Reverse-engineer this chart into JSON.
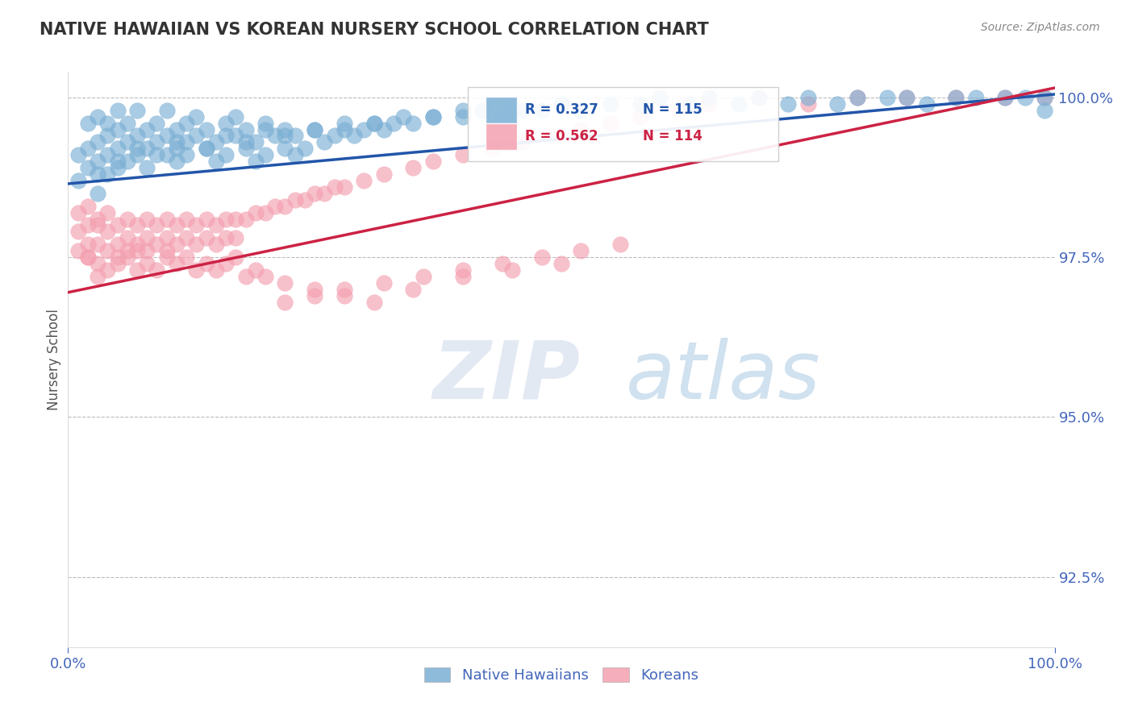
{
  "title": "NATIVE HAWAIIAN VS KOREAN NURSERY SCHOOL CORRELATION CHART",
  "source_text": "Source: ZipAtlas.com",
  "ylabel": "Nursery School",
  "xlim": [
    0.0,
    1.0
  ],
  "ylim": [
    0.914,
    1.004
  ],
  "yticks": [
    0.925,
    0.95,
    0.975,
    1.0
  ],
  "ytick_labels": [
    "92.5%",
    "95.0%",
    "97.5%",
    "100.0%"
  ],
  "xtick_labels": [
    "0.0%",
    "100.0%"
  ],
  "blue_color": "#7BAFD4",
  "pink_color": "#F4A0B0",
  "line_blue": "#2255AA",
  "line_pink": "#CC2244",
  "legend_R_blue": "R = 0.327",
  "legend_N_blue": "N = 115",
  "legend_R_pink": "R = 0.562",
  "legend_N_pink": "N = 114",
  "legend_label_blue": "Native Hawaiians",
  "legend_label_pink": "Koreans",
  "watermark_ZIP": "ZIP",
  "watermark_atlas": "atlas",
  "title_color": "#333333",
  "axis_label_color": "#555555",
  "tick_color": "#4466BB",
  "grid_color": "#BBBBBB",
  "blue_line": {
    "x0": 0.0,
    "x1": 1.0,
    "y0": 0.9865,
    "y1": 1.0005
  },
  "pink_line": {
    "x0": 0.0,
    "x1": 1.0,
    "y0": 0.9695,
    "y1": 1.0015
  },
  "blue_x": [
    0.01,
    0.01,
    0.02,
    0.02,
    0.02,
    0.03,
    0.03,
    0.03,
    0.03,
    0.04,
    0.04,
    0.04,
    0.04,
    0.05,
    0.05,
    0.05,
    0.05,
    0.06,
    0.06,
    0.06,
    0.07,
    0.07,
    0.07,
    0.08,
    0.08,
    0.08,
    0.09,
    0.09,
    0.1,
    0.1,
    0.1,
    0.11,
    0.11,
    0.11,
    0.12,
    0.12,
    0.12,
    0.13,
    0.13,
    0.14,
    0.14,
    0.15,
    0.15,
    0.16,
    0.16,
    0.17,
    0.17,
    0.18,
    0.18,
    0.19,
    0.19,
    0.2,
    0.2,
    0.21,
    0.22,
    0.22,
    0.23,
    0.23,
    0.24,
    0.25,
    0.26,
    0.27,
    0.28,
    0.29,
    0.3,
    0.31,
    0.32,
    0.33,
    0.35,
    0.37,
    0.4,
    0.42,
    0.44,
    0.46,
    0.48,
    0.5,
    0.52,
    0.55,
    0.58,
    0.6,
    0.63,
    0.65,
    0.68,
    0.7,
    0.73,
    0.75,
    0.78,
    0.8,
    0.83,
    0.85,
    0.87,
    0.9,
    0.92,
    0.95,
    0.97,
    0.99,
    0.99,
    0.03,
    0.05,
    0.07,
    0.09,
    0.11,
    0.14,
    0.16,
    0.18,
    0.2,
    0.22,
    0.25,
    0.28,
    0.31,
    0.34,
    0.37,
    0.4,
    0.45,
    0.5
  ],
  "blue_y": [
    0.991,
    0.987,
    0.992,
    0.989,
    0.996,
    0.99,
    0.993,
    0.997,
    0.985,
    0.994,
    0.991,
    0.996,
    0.988,
    0.992,
    0.995,
    0.989,
    0.998,
    0.993,
    0.99,
    0.996,
    0.991,
    0.994,
    0.998,
    0.992,
    0.995,
    0.989,
    0.993,
    0.996,
    0.991,
    0.994,
    0.998,
    0.992,
    0.995,
    0.99,
    0.993,
    0.996,
    0.991,
    0.994,
    0.997,
    0.992,
    0.995,
    0.99,
    0.993,
    0.996,
    0.991,
    0.994,
    0.997,
    0.992,
    0.995,
    0.99,
    0.993,
    0.996,
    0.991,
    0.994,
    0.992,
    0.995,
    0.991,
    0.994,
    0.992,
    0.995,
    0.993,
    0.994,
    0.995,
    0.994,
    0.995,
    0.996,
    0.995,
    0.996,
    0.996,
    0.997,
    0.997,
    0.998,
    0.997,
    0.998,
    0.998,
    0.999,
    0.998,
    0.999,
    0.999,
    1.0,
    0.999,
    1.0,
    0.999,
    1.0,
    0.999,
    1.0,
    0.999,
    1.0,
    1.0,
    1.0,
    0.999,
    1.0,
    1.0,
    1.0,
    1.0,
    1.0,
    0.998,
    0.988,
    0.99,
    0.992,
    0.991,
    0.993,
    0.992,
    0.994,
    0.993,
    0.995,
    0.994,
    0.995,
    0.996,
    0.996,
    0.997,
    0.997,
    0.998,
    0.998,
    0.999
  ],
  "pink_x": [
    0.01,
    0.01,
    0.01,
    0.02,
    0.02,
    0.02,
    0.02,
    0.03,
    0.03,
    0.03,
    0.03,
    0.04,
    0.04,
    0.04,
    0.05,
    0.05,
    0.05,
    0.06,
    0.06,
    0.06,
    0.07,
    0.07,
    0.07,
    0.08,
    0.08,
    0.08,
    0.09,
    0.09,
    0.1,
    0.1,
    0.1,
    0.11,
    0.11,
    0.12,
    0.12,
    0.13,
    0.13,
    0.14,
    0.14,
    0.15,
    0.15,
    0.16,
    0.16,
    0.17,
    0.17,
    0.18,
    0.19,
    0.2,
    0.21,
    0.22,
    0.23,
    0.24,
    0.25,
    0.26,
    0.27,
    0.28,
    0.3,
    0.32,
    0.35,
    0.37,
    0.4,
    0.43,
    0.46,
    0.49,
    0.52,
    0.55,
    0.58,
    0.62,
    0.65,
    0.7,
    0.75,
    0.8,
    0.85,
    0.9,
    0.95,
    0.99,
    0.02,
    0.03,
    0.04,
    0.05,
    0.06,
    0.07,
    0.08,
    0.09,
    0.1,
    0.11,
    0.12,
    0.13,
    0.14,
    0.15,
    0.16,
    0.17,
    0.18,
    0.19,
    0.2,
    0.22,
    0.25,
    0.28,
    0.31,
    0.35,
    0.4,
    0.45,
    0.5,
    0.22,
    0.25,
    0.28,
    0.32,
    0.36,
    0.4,
    0.44,
    0.48,
    0.52,
    0.56
  ],
  "pink_y": [
    0.979,
    0.982,
    0.976,
    0.98,
    0.977,
    0.983,
    0.975,
    0.98,
    0.977,
    0.974,
    0.981,
    0.979,
    0.976,
    0.982,
    0.98,
    0.977,
    0.975,
    0.981,
    0.978,
    0.976,
    0.98,
    0.977,
    0.976,
    0.981,
    0.978,
    0.976,
    0.98,
    0.977,
    0.981,
    0.978,
    0.976,
    0.98,
    0.977,
    0.981,
    0.978,
    0.98,
    0.977,
    0.981,
    0.978,
    0.98,
    0.977,
    0.981,
    0.978,
    0.981,
    0.978,
    0.981,
    0.982,
    0.982,
    0.983,
    0.983,
    0.984,
    0.984,
    0.985,
    0.985,
    0.986,
    0.986,
    0.987,
    0.988,
    0.989,
    0.99,
    0.991,
    0.992,
    0.993,
    0.994,
    0.995,
    0.996,
    0.997,
    0.998,
    0.999,
    1.0,
    0.999,
    1.0,
    1.0,
    1.0,
    1.0,
    1.0,
    0.975,
    0.972,
    0.973,
    0.974,
    0.975,
    0.973,
    0.974,
    0.973,
    0.975,
    0.974,
    0.975,
    0.973,
    0.974,
    0.973,
    0.974,
    0.975,
    0.972,
    0.973,
    0.972,
    0.971,
    0.97,
    0.969,
    0.968,
    0.97,
    0.972,
    0.973,
    0.974,
    0.968,
    0.969,
    0.97,
    0.971,
    0.972,
    0.973,
    0.974,
    0.975,
    0.976,
    0.977
  ]
}
